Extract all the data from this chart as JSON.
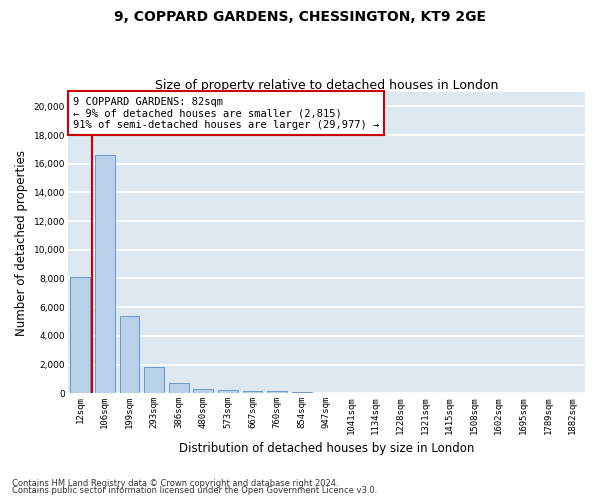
{
  "title": "9, COPPARD GARDENS, CHESSINGTON, KT9 2GE",
  "subtitle": "Size of property relative to detached houses in London",
  "xlabel": "Distribution of detached houses by size in London",
  "ylabel": "Number of detached properties",
  "categories": [
    "12sqm",
    "106sqm",
    "199sqm",
    "293sqm",
    "386sqm",
    "480sqm",
    "573sqm",
    "667sqm",
    "760sqm",
    "854sqm",
    "947sqm",
    "1041sqm",
    "1134sqm",
    "1228sqm",
    "1321sqm",
    "1415sqm",
    "1508sqm",
    "1602sqm",
    "1695sqm",
    "1789sqm",
    "1882sqm"
  ],
  "values": [
    8100,
    16600,
    5400,
    1850,
    700,
    330,
    210,
    175,
    150,
    110,
    0,
    0,
    0,
    0,
    0,
    0,
    0,
    0,
    0,
    0,
    0
  ],
  "bar_color": "#b8d0e8",
  "bar_edge_color": "#6699cc",
  "annotation_text": "9 COPPARD GARDENS: 82sqm\n← 9% of detached houses are smaller (2,815)\n91% of semi-detached houses are larger (29,977) →",
  "annotation_box_color": "#ffffff",
  "annotation_border_color": "#cc0000",
  "vline_color": "#cc0000",
  "ylim": [
    0,
    21000
  ],
  "yticks": [
    0,
    2000,
    4000,
    6000,
    8000,
    10000,
    12000,
    14000,
    16000,
    18000,
    20000
  ],
  "bg_color": "#dde8f0",
  "grid_color": "#ffffff",
  "footer_line1": "Contains HM Land Registry data © Crown copyright and database right 2024.",
  "footer_line2": "Contains public sector information licensed under the Open Government Licence v3.0.",
  "title_fontsize": 10,
  "subtitle_fontsize": 9,
  "tick_fontsize": 6.5,
  "label_fontsize": 8.5,
  "annotation_fontsize": 7.5
}
